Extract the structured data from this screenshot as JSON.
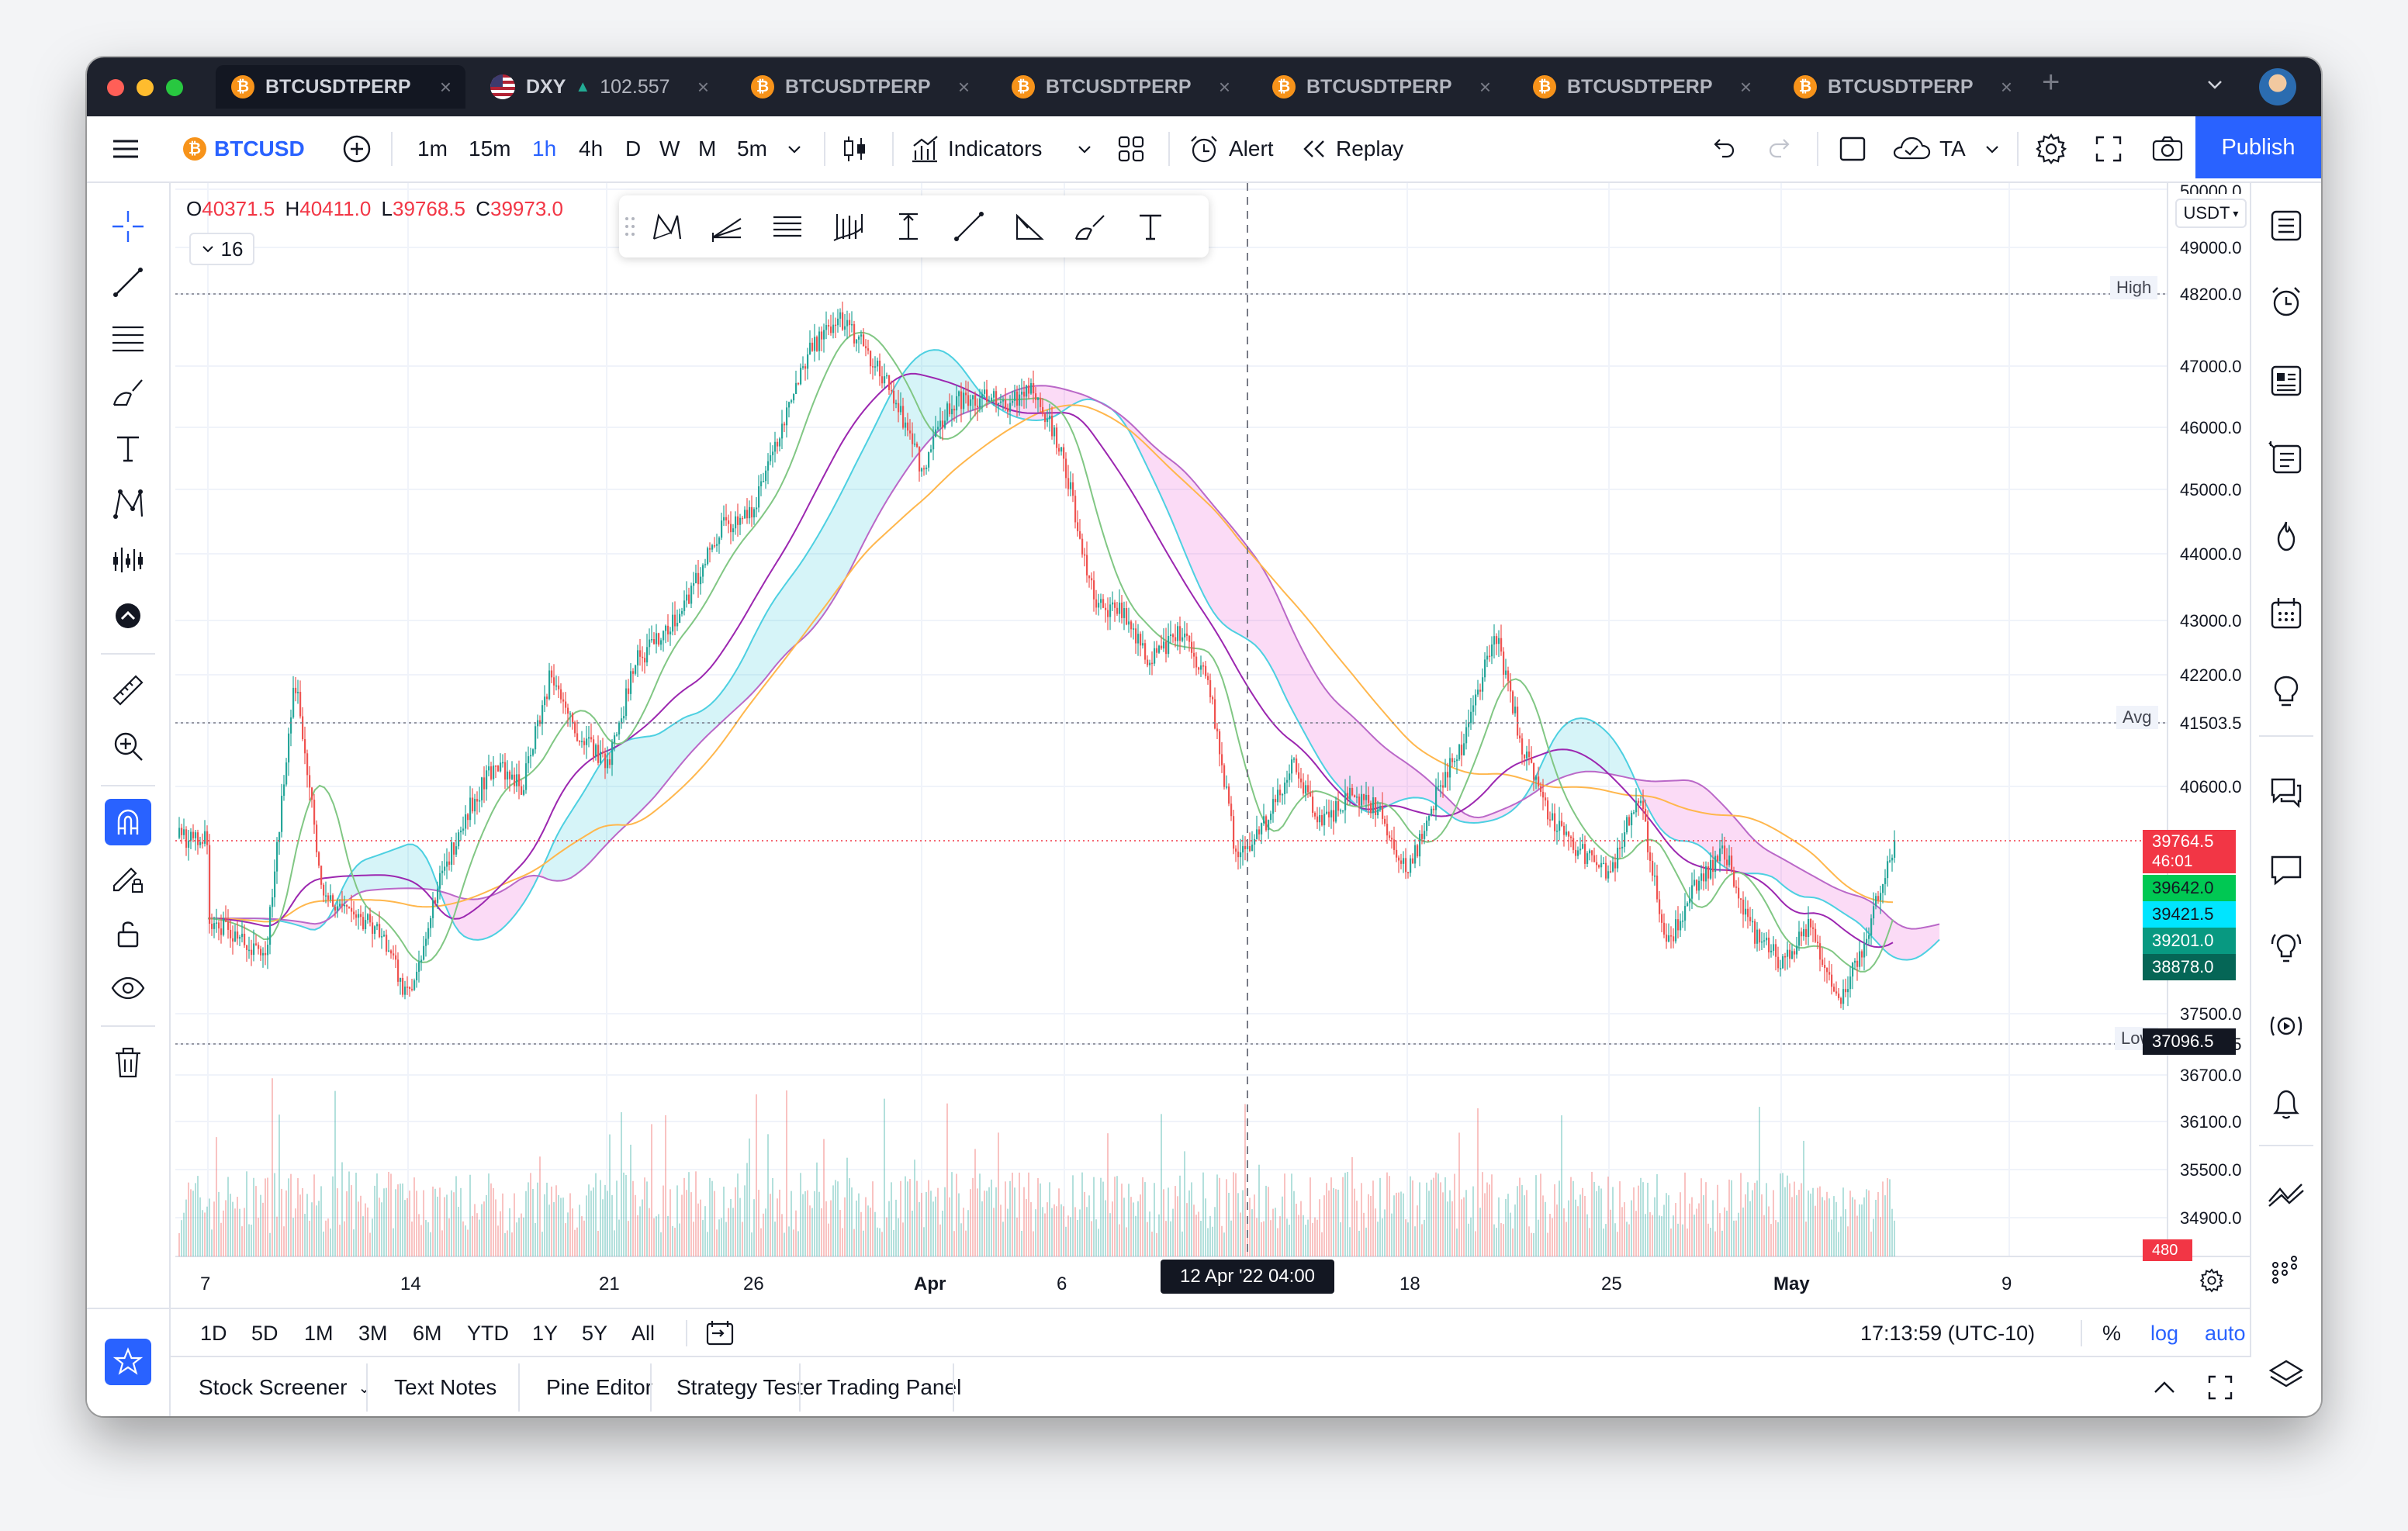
{
  "tabs": [
    {
      "symbol": "BTCUSDTPERP",
      "active": true
    },
    {
      "symbol": "DXY",
      "change": "▲",
      "price": "102.557",
      "flag": true
    },
    {
      "symbol": "BTCUSDTPERP"
    },
    {
      "symbol": "BTCUSDTPERP"
    },
    {
      "symbol": "BTCUSDTPERP"
    },
    {
      "symbol": "BTCUSDTPERP"
    },
    {
      "symbol": "BTCUSDTPERP"
    }
  ],
  "toolbar": {
    "symbol": "BTCUSD",
    "intervals": [
      "1m",
      "15m",
      "1h",
      "4h",
      "D",
      "W",
      "M",
      "5m"
    ],
    "active_interval": "1h",
    "indicators_label": "Indicators",
    "alert_label": "Alert",
    "replay_label": "Replay",
    "ta_label": "TA",
    "publish_label": "Publish"
  },
  "legend": {
    "o_key": "O",
    "o": "40371.5",
    "h_key": "H",
    "h": "40411.0",
    "l_key": "L",
    "l": "39768.5",
    "c_key": "C",
    "c": "39973.0",
    "indicator_count": "16"
  },
  "price_axis": {
    "currency": "USDT",
    "top_partial": "50000.0",
    "ticks": [
      "49000.0",
      "48200.0",
      "47000.0",
      "46000.0",
      "45000.0",
      "44000.0",
      "43000.0",
      "42200.0",
      "41503.5",
      "40600.0",
      "37500.0",
      "37096.5",
      "36700.0",
      "36100.0",
      "35500.0",
      "34900.0"
    ],
    "high_label": "High",
    "high": "48200.0",
    "avg_label": "Avg",
    "avg": "41503.5",
    "low_label": "Low",
    "low": "37096.5",
    "badges": [
      {
        "value": "39764.5",
        "sub": "46:01",
        "color": "#f23645"
      },
      {
        "value": "39642.0",
        "color": "#00c853"
      },
      {
        "value": "39421.5",
        "color": "#00e5ff"
      },
      {
        "value": "39201.0",
        "color": "#089981"
      },
      {
        "value": "38878.0",
        "color": "#056656"
      }
    ],
    "volume_badge": "480"
  },
  "time_axis": {
    "labels": [
      "7",
      "14",
      "21",
      "26",
      "Apr",
      "6",
      "18",
      "25",
      "May",
      "9"
    ],
    "crosshair": "12 Apr '22   04:00"
  },
  "ranges": [
    "1D",
    "5D",
    "1M",
    "3M",
    "6M",
    "YTD",
    "1Y",
    "5Y",
    "All"
  ],
  "clock": "17:13:59 (UTC-10)",
  "scale_options": {
    "percent": "%",
    "log": "log",
    "auto": "auto"
  },
  "bottom_tabs": [
    "Stock Screener",
    "Text Notes",
    "Pine Editor",
    "Strategy Tester",
    "Trading Panel"
  ],
  "chart_data": {
    "type": "candlestick",
    "symbol": "BTCUSD",
    "interval": "1h",
    "x_range": [
      "7 Mar",
      "9 May"
    ],
    "ylim": [
      34900,
      50000
    ],
    "close_path": [
      [
        "7 Mar",
        38800
      ],
      [
        "9 Mar",
        38300
      ],
      [
        "10 Mar",
        42200
      ],
      [
        "11 Mar",
        39100
      ],
      [
        "12 Mar",
        38900
      ],
      [
        "13 Mar",
        38600
      ],
      [
        "14 Mar",
        37700
      ],
      [
        "15 Mar",
        39200
      ],
      [
        "16 Mar",
        40200
      ],
      [
        "17 Mar",
        40900
      ],
      [
        "18 Mar",
        40600
      ],
      [
        "19 Mar",
        42200
      ],
      [
        "20 Mar",
        41300
      ],
      [
        "21 Mar",
        40900
      ],
      [
        "22 Mar",
        42400
      ],
      [
        "23 Mar",
        42800
      ],
      [
        "24 Mar",
        43500
      ],
      [
        "25 Mar",
        44400
      ],
      [
        "26 Mar",
        44600
      ],
      [
        "28 Mar",
        47200
      ],
      [
        "29 Mar",
        47800
      ],
      [
        "30 Mar",
        47300
      ],
      [
        "31 Mar",
        46500
      ],
      [
        "1 Apr",
        45300
      ],
      [
        "2 Apr",
        46400
      ],
      [
        "3 Apr",
        46500
      ],
      [
        "4 Apr",
        46400
      ],
      [
        "5 Apr",
        46600
      ],
      [
        "6 Apr",
        45400
      ],
      [
        "7 Apr",
        43300
      ],
      [
        "8 Apr",
        43100
      ],
      [
        "9 Apr",
        42400
      ],
      [
        "10 Apr",
        42800
      ],
      [
        "11 Apr",
        42200
      ],
      [
        "12 Apr",
        39600
      ],
      [
        "13 Apr",
        40100
      ],
      [
        "14 Apr",
        40900
      ],
      [
        "15 Apr",
        40100
      ],
      [
        "16 Apr",
        40500
      ],
      [
        "17 Apr",
        40300
      ],
      [
        "18 Apr",
        39400
      ],
      [
        "19 Apr",
        40500
      ],
      [
        "20 Apr",
        41300
      ],
      [
        "21 Apr",
        42900
      ],
      [
        "22 Apr",
        41100
      ],
      [
        "23 Apr",
        40100
      ],
      [
        "24 Apr",
        39700
      ],
      [
        "25 Apr",
        39400
      ],
      [
        "26 Apr",
        40500
      ],
      [
        "27 Apr",
        38400
      ],
      [
        "28 Apr",
        39300
      ],
      [
        "29 Apr",
        39700
      ],
      [
        "30 Apr",
        38600
      ],
      [
        "1 May",
        38200
      ],
      [
        "2 May",
        38700
      ],
      [
        "3 May",
        37600
      ],
      [
        "4 May",
        38600
      ],
      [
        "5 May",
        39900
      ]
    ]
  }
}
